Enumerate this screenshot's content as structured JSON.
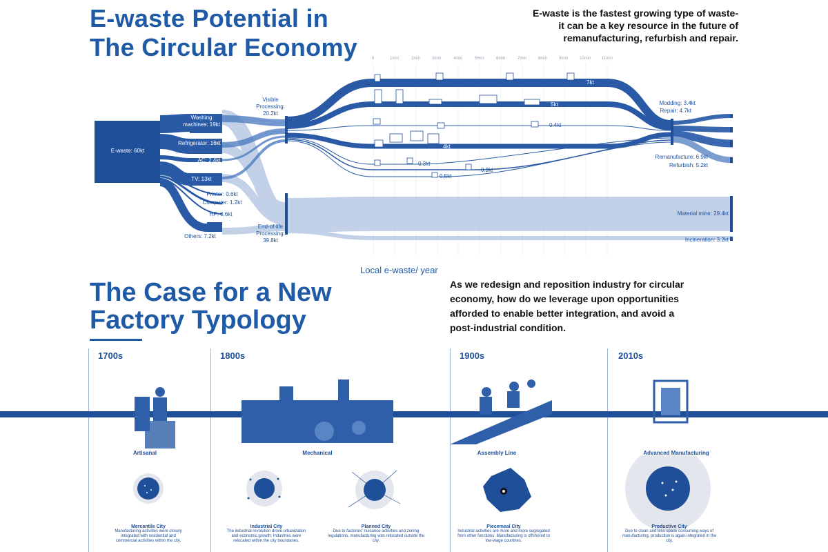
{
  "header": {
    "title": "E-waste Potential in\nThe Circular Economy",
    "blurb": "E-waste is the fastest growing type of waste- it can be a key resource in the future of remanufacturing, refurbish and repair."
  },
  "sankey": {
    "source": "E-waste: 60kt",
    "products": [
      "Washing machines: 19kt",
      "Refrigerator: 16kt",
      "AC: 2.4kt",
      "TV: 13kt",
      "Printer: 0.6kt",
      "Computer: 1.2kt",
      "HP: 0.6kt",
      "Others: 7.2kt"
    ],
    "processing": [
      "Visible Processing: 20.2kt",
      "End-of-life Processing: 39.8kt"
    ],
    "ticks": [
      "0",
      "1min",
      "2min",
      "3min",
      "4min",
      "5min",
      "6min",
      "7min",
      "8min",
      "9min",
      "10min",
      "11min"
    ],
    "flows": [
      "7kt",
      "5kt",
      "0.4kt",
      "4kt",
      "0.3kt",
      "0.9kt",
      "0.5kt"
    ],
    "outcomes": [
      "Modding: 3.4kt",
      "Repair: 4.7kt",
      "Remanufacture: 6.9kt",
      "Refurbish: 5.2kt",
      "Material mine: 29.4kt",
      "Incineration: 3.2kt"
    ],
    "axis_label": "Local e-waste/ year",
    "colors": {
      "dark": "#1f4f99",
      "mid": "#5a85c4",
      "light": "#b8c8e4"
    }
  },
  "section2": {
    "title": "The Case for a New\nFactory Typology",
    "blurb": "As we redesign and reposition industry  for circular economy, how do we leverage upon opportunities afforded to enable better integration, and avoid a post-industrial condition."
  },
  "timeline": {
    "eras": [
      "1700s",
      "1800s",
      "1900s",
      "2010s"
    ],
    "typologies": [
      "Artisanal",
      "Mechanical",
      "Assembly Line",
      "Advanced Manufacturing"
    ],
    "cities": [
      {
        "title": "Mercantile City",
        "desc": "Manufacturing activities were closely integrated with residential and commercial activities within the city."
      },
      {
        "title": "Industrial City",
        "desc": "The industrial revolution drove urbanization and economic growth. Industries were relocated within the city boundaries."
      },
      {
        "title": "Planned City",
        "desc": "Due to factories' nuisance activities and zoning regulations, manufacturing was relocated outside the city."
      },
      {
        "title": "Piecemeal City",
        "desc": "Industrial activities are more and more segregated from other functions. Manufacturing is offshored to low-wage countries."
      },
      {
        "title": "Productive City",
        "desc": "Due to clean and less space consuming ways of manufacturing, production is again integrated in the city."
      }
    ]
  }
}
